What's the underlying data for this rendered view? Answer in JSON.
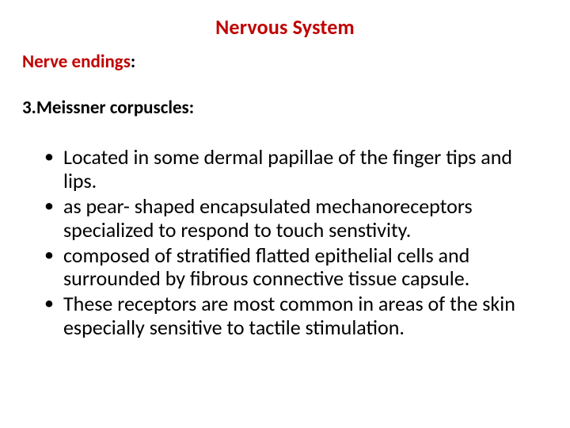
{
  "title": {
    "text": "Nervous System",
    "color": "#c00000",
    "fontsize": 26,
    "fontweight": 700
  },
  "subheader": {
    "label": "Nerve endings",
    "label_color": "#c00000",
    "colon_color": "#000000",
    "fontsize": 23,
    "fontweight": 700
  },
  "numbered": {
    "num": "3.",
    "text": "Meissner corpuscles:",
    "color": "#000000",
    "fontsize": 23,
    "fontweight": 700
  },
  "bullets": {
    "fontsize": 26,
    "color": "#000000",
    "items": [
      "Located in some dermal papillae of the finger tips and lips.",
      " as pear- shaped encapsulated mechanoreceptors specialized to respond to touch senstivity.",
      " composed of stratified flatted epithelial cells and surrounded by fibrous connective tissue capsule.",
      " These receptors are most common in areas of the skin especially sensitive to tactile stimulation."
    ]
  },
  "background_color": "#ffffff"
}
